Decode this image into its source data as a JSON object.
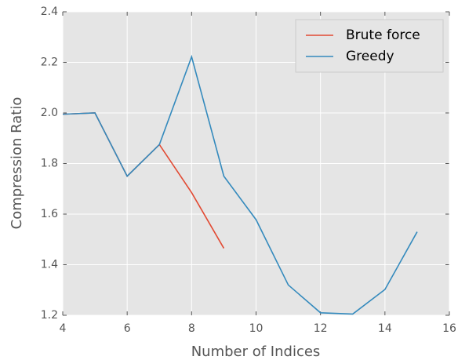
{
  "chart_data": {
    "type": "line",
    "x_label": "Number of Indices",
    "y_label": "Compression Ratio",
    "x": [
      4,
      5,
      6,
      7,
      8,
      9,
      10,
      11,
      12,
      13,
      14,
      15
    ],
    "series": [
      {
        "name": "Brute force",
        "color": "#e24a33",
        "values": [
          1.995,
          2.0,
          1.75,
          1.875,
          1.685,
          1.465,
          null,
          null,
          null,
          null,
          null,
          null
        ]
      },
      {
        "name": "Greedy",
        "color": "#348abd",
        "values": [
          1.995,
          2.0,
          1.75,
          1.875,
          2.222,
          1.75,
          1.578,
          1.32,
          1.21,
          1.205,
          1.302,
          1.53
        ]
      }
    ],
    "xlim": [
      4,
      16
    ],
    "xticks": [
      4,
      6,
      8,
      10,
      12,
      14,
      16
    ],
    "ylim": [
      1.2,
      2.4
    ],
    "yticks": [
      1.2,
      1.4,
      1.6,
      1.8,
      {
        "value": 2,
        "label": "2.0"
      },
      2.2,
      2.4
    ],
    "grid": true,
    "legend": "upper right",
    "background": "#e5e5e5"
  }
}
